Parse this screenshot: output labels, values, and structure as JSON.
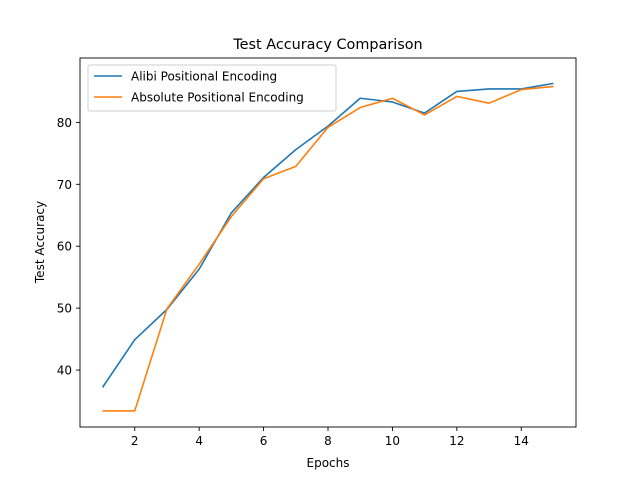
{
  "chart_data": {
    "type": "line",
    "title": "Test Accuracy Comparison",
    "xlabel": "Epochs",
    "ylabel": "Test Accuracy",
    "xlim": [
      0.3,
      15.7
    ],
    "ylim": [
      30.8,
      90.4
    ],
    "xticks": [
      2,
      4,
      6,
      8,
      10,
      12,
      14
    ],
    "yticks": [
      40,
      50,
      60,
      70,
      80
    ],
    "grid": false,
    "legend_position": "upper-left",
    "x": [
      1,
      2,
      3,
      4,
      5,
      6,
      7,
      8,
      9,
      10,
      11,
      12,
      13,
      14,
      15
    ],
    "series": [
      {
        "name": "Alibi Positional Encoding",
        "color": "#1f77b4",
        "values": [
          37.2,
          44.9,
          49.8,
          56.3,
          65.4,
          71.1,
          75.6,
          79.4,
          83.9,
          83.3,
          81.5,
          85.0,
          85.4,
          85.4,
          86.3
        ]
      },
      {
        "name": "Absolute Positional Encoding",
        "color": "#ff7f0e",
        "values": [
          33.4,
          33.4,
          49.9,
          57.1,
          64.8,
          70.9,
          72.9,
          79.2,
          82.4,
          83.9,
          81.2,
          84.2,
          83.1,
          85.3,
          85.8
        ]
      }
    ]
  }
}
